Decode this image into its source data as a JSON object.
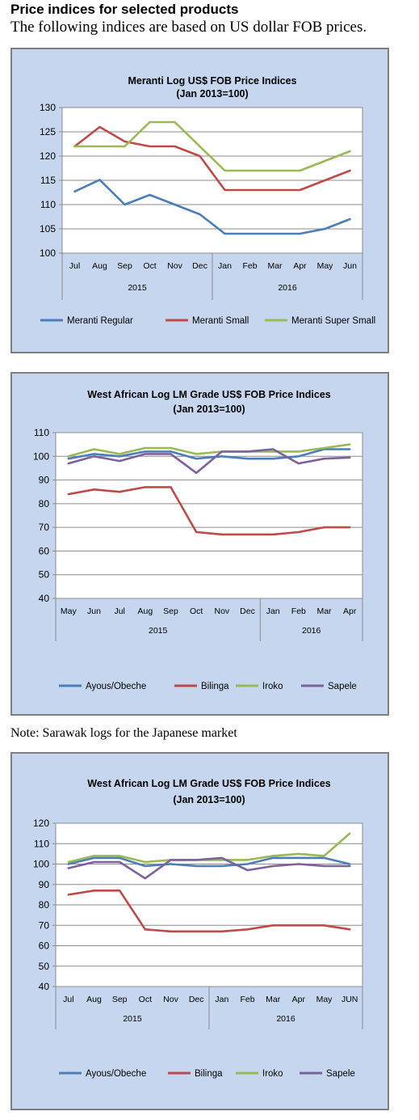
{
  "heading": "Price indices for selected products",
  "intro": "The following indices are based on US dollar FOB prices.",
  "note": "Note: Sarawak logs for the Japanese market",
  "chart_data": [
    {
      "type": "line",
      "title": "Meranti Log US$ FOB Price Indices",
      "subtitle": "(Jan 2013=100)",
      "categories": [
        "Jul",
        "Aug",
        "Sep",
        "Oct",
        "Nov",
        "Dec",
        "Jan",
        "Feb",
        "Mar",
        "Apr",
        "May",
        "Jun"
      ],
      "year_groups": [
        {
          "label": "2015",
          "count": 6
        },
        {
          "label": "2016",
          "count": 6
        }
      ],
      "ylim": [
        100,
        130
      ],
      "yticks": [
        100,
        105,
        110,
        115,
        120,
        125,
        130
      ],
      "grid": true,
      "legend_position": "bottom",
      "series": [
        {
          "name": "Meranti Regular",
          "color": "#4a7ebb",
          "values": [
            112.7,
            115.1,
            110.0,
            112.0,
            110.0,
            108.0,
            104.0,
            104.0,
            104.0,
            104.0,
            105.0,
            107.0
          ]
        },
        {
          "name": "Meranti Small",
          "color": "#be4b48",
          "values": [
            122.0,
            126.0,
            123.0,
            122.0,
            122.0,
            120.0,
            113.0,
            113.0,
            113.0,
            113.0,
            115.0,
            117.0
          ]
        },
        {
          "name": "Meranti Super Small",
          "color": "#98b954",
          "values": [
            122.0,
            122.0,
            122.0,
            127.0,
            127.0,
            122.0,
            117.0,
            117.0,
            117.0,
            117.0,
            119.0,
            121.0
          ]
        }
      ]
    },
    {
      "type": "line",
      "title": "West African Log LM Grade US$ FOB Price Indices",
      "subtitle": "(Jan 2013=100)",
      "categories": [
        "May",
        "Jun",
        "Jul",
        "Aug",
        "Sep",
        "Oct",
        "Nov",
        "Dec",
        "Jan",
        "Feb",
        "Mar",
        "Apr"
      ],
      "year_groups": [
        {
          "label": "2015",
          "count": 8
        },
        {
          "label": "2016",
          "count": 4
        }
      ],
      "ylim": [
        40,
        110
      ],
      "yticks": [
        40,
        50,
        60,
        70,
        80,
        90,
        100,
        110
      ],
      "grid": true,
      "legend_position": "bottom",
      "series": [
        {
          "name": "Ayous/Obeche",
          "color": "#4a7ebb",
          "values": [
            99.0,
            101.0,
            100.0,
            102.0,
            102.0,
            99.0,
            100.0,
            99.0,
            99.0,
            100.0,
            103.0,
            103.0
          ]
        },
        {
          "name": "Bilinga",
          "color": "#be4b48",
          "values": [
            84.0,
            86.0,
            85.0,
            87.0,
            87.0,
            68.0,
            67.0,
            67.0,
            67.0,
            68.0,
            70.0,
            70.0
          ]
        },
        {
          "name": "Iroko",
          "color": "#98b954",
          "values": [
            100.0,
            103.0,
            101.0,
            103.5,
            103.5,
            101.0,
            102.0,
            102.0,
            102.0,
            102.0,
            103.5,
            105.0
          ]
        },
        {
          "name": "Sapele",
          "color": "#7d60a0",
          "values": [
            97.0,
            100.0,
            98.0,
            101.0,
            101.0,
            93.0,
            102.0,
            102.0,
            103.0,
            97.0,
            99.0,
            99.5
          ]
        }
      ]
    },
    {
      "type": "line",
      "title": "West African Log LM Grade US$ FOB Price Indices",
      "subtitle": "(Jan 2013=100)",
      "categories": [
        "Jul",
        "Aug",
        "Sep",
        "Oct",
        "Nov",
        "Dec",
        "Jan",
        "Feb",
        "Mar",
        "Apr",
        "May",
        "JUN"
      ],
      "year_groups": [
        {
          "label": "2015",
          "count": 6
        },
        {
          "label": "2016",
          "count": 6
        }
      ],
      "ylim": [
        40,
        120
      ],
      "yticks": [
        40,
        50,
        60,
        70,
        80,
        90,
        100,
        110,
        120
      ],
      "grid": true,
      "legend_position": "bottom",
      "series": [
        {
          "name": "Ayous/Obeche",
          "color": "#4a7ebb",
          "values": [
            100.0,
            103.0,
            103.0,
            99.0,
            100.0,
            99.0,
            99.0,
            100.0,
            103.0,
            103.0,
            103.0,
            100.0
          ]
        },
        {
          "name": "Bilinga",
          "color": "#be4b48",
          "values": [
            85.0,
            87.0,
            87.0,
            68.0,
            67.0,
            67.0,
            67.0,
            68.0,
            70.0,
            70.0,
            70.0,
            68.0
          ]
        },
        {
          "name": "Iroko",
          "color": "#98b954",
          "values": [
            101.0,
            104.0,
            104.0,
            101.0,
            102.0,
            102.0,
            102.0,
            102.0,
            104.0,
            105.0,
            104.0,
            115.0
          ]
        },
        {
          "name": "Sapele",
          "color": "#7d60a0",
          "values": [
            98.0,
            101.0,
            101.0,
            93.0,
            102.0,
            102.0,
            103.0,
            97.0,
            99.0,
            100.0,
            99.0,
            99.0
          ]
        }
      ]
    }
  ]
}
